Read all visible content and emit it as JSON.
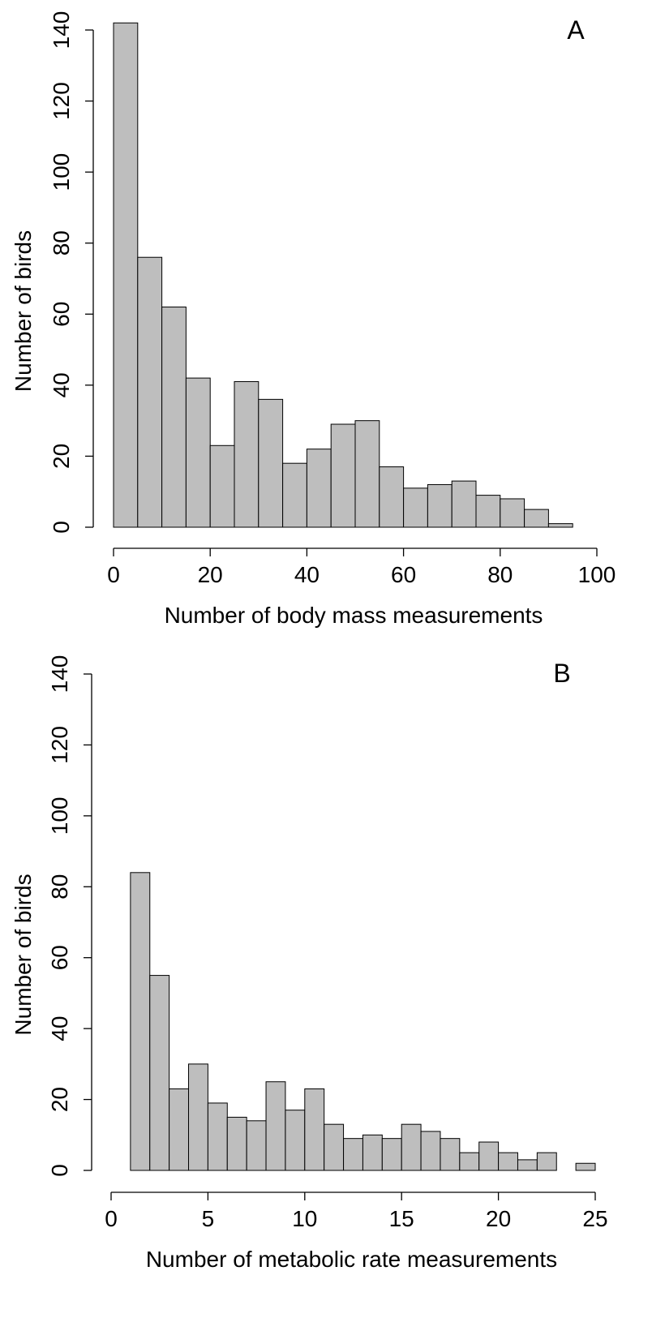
{
  "chart_data": [
    {
      "type": "histogram",
      "annotation": "A",
      "x_label": "Number of body mass measurements",
      "y_label": "Number of birds",
      "bins": [
        0,
        5,
        10,
        15,
        20,
        25,
        30,
        35,
        40,
        45,
        50,
        55,
        60,
        65,
        70,
        75,
        80,
        85,
        90,
        95
      ],
      "values": [
        142,
        76,
        62,
        42,
        23,
        41,
        36,
        18,
        22,
        29,
        30,
        17,
        11,
        12,
        13,
        9,
        8,
        5,
        1
      ],
      "color": "#bebebe",
      "xlim": [
        0,
        100
      ],
      "xticks": [
        0,
        20,
        40,
        60,
        80,
        100
      ],
      "ylim": [
        0,
        140
      ],
      "yticks": [
        0,
        20,
        40,
        60,
        80,
        100,
        120,
        140
      ]
    },
    {
      "type": "histogram",
      "annotation": "B",
      "x_label": "Number of metabolic rate measurements",
      "y_label": "Number of birds",
      "bins": [
        1,
        2,
        3,
        4,
        5,
        6,
        7,
        8,
        9,
        10,
        11,
        12,
        13,
        14,
        15,
        16,
        17,
        18,
        19,
        20,
        21,
        22,
        23,
        24,
        25
      ],
      "values": [
        84,
        55,
        23,
        30,
        19,
        15,
        14,
        25,
        17,
        23,
        13,
        9,
        10,
        9,
        13,
        11,
        9,
        5,
        8,
        5,
        3,
        5,
        0,
        2
      ],
      "color": "#bebebe",
      "xlim": [
        0,
        25
      ],
      "xticks": [
        0,
        5,
        10,
        15,
        20,
        25
      ],
      "ylim": [
        0,
        140
      ],
      "yticks": [
        0,
        20,
        40,
        60,
        80,
        100,
        120,
        140
      ]
    }
  ]
}
